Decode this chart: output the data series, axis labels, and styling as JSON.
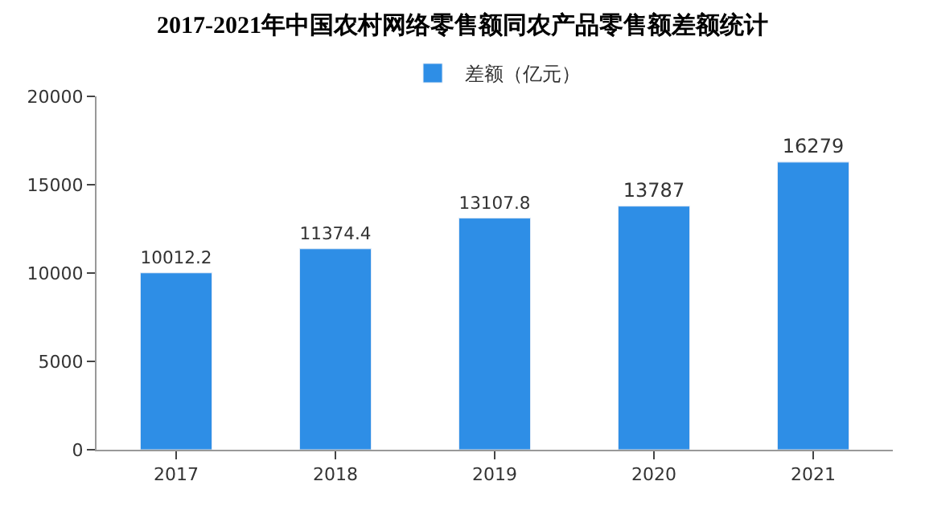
{
  "chart_data": {
    "type": "bar",
    "title": "2017-2021年中国农村网络零售额同农产品零售额差额统计",
    "categories": [
      "2017",
      "2018",
      "2019",
      "2020",
      "2021"
    ],
    "series": [
      {
        "name": "差额（亿元）",
        "color": "#2e8ee6",
        "values": [
          10012.2,
          11374.4,
          13107.8,
          13787,
          16279
        ]
      }
    ],
    "ylim": [
      0,
      20000
    ],
    "yticks": [
      0,
      5000,
      10000,
      15000,
      20000
    ],
    "data_labels": true,
    "legend": "top",
    "grid": false
  }
}
